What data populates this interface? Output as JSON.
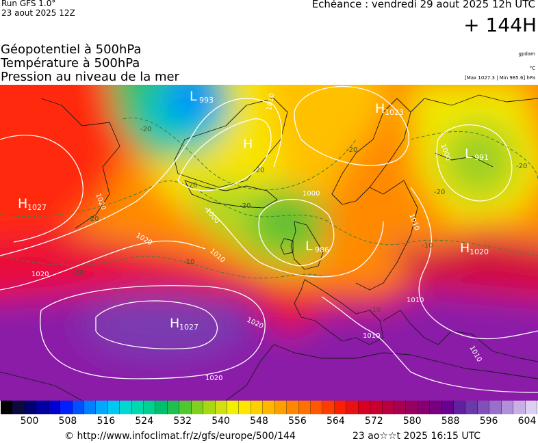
{
  "header": {
    "run": "Run GFS 1.0°",
    "run_date": "23 aout 2025 12Z",
    "valid": "Echéance : vendredi 29 aout 2025 12h UTC",
    "lead": "+ 144H"
  },
  "parameters": [
    "Géopotentiel à 500hPa",
    "Température à 500hPa",
    "Pression au niveau de la mer"
  ],
  "units": {
    "geopotential": "gpdam",
    "temperature": "°C",
    "pressure_range": "[Max 1027.3 | Min 985.6] hPa"
  },
  "pressure_systems": [
    {
      "type": "L",
      "value": "993"
    },
    {
      "type": "H",
      "value": ""
    },
    {
      "type": "H",
      "value": "1023"
    },
    {
      "type": "L",
      "value": "991"
    },
    {
      "type": "H",
      "value": "1027"
    },
    {
      "type": "L",
      "value": "986"
    },
    {
      "type": "H",
      "value": "1020"
    },
    {
      "type": "H",
      "value": "1027"
    }
  ],
  "isobar_labels": [
    "1010",
    "1020",
    "1020",
    "1020",
    "1000",
    "1000",
    "1010",
    "1010",
    "1010",
    "1010",
    "1010",
    "1020",
    "1020",
    "1000"
  ],
  "isotherm_labels": [
    "-10",
    "-10",
    "-20",
    "-20",
    "-20",
    "-20",
    "-20",
    "-20",
    "-10",
    "-10",
    "-20",
    "-20"
  ],
  "colorbar": {
    "colors": [
      "#000000",
      "#0a0a40",
      "#000070",
      "#0000a0",
      "#0000d0",
      "#0020ff",
      "#0050ff",
      "#0080ff",
      "#00a8ff",
      "#00c8f0",
      "#00d8d0",
      "#00d8b0",
      "#00d090",
      "#00c070",
      "#20c050",
      "#50c830",
      "#80d020",
      "#a8d810",
      "#d0e010",
      "#f0f000",
      "#ffe600",
      "#ffd000",
      "#ffb800",
      "#ffa000",
      "#ff8800",
      "#ff7000",
      "#ff5800",
      "#ff3c00",
      "#f82000",
      "#e81010",
      "#d80020",
      "#c80030",
      "#b80040",
      "#a80050",
      "#980060",
      "#880070",
      "#780080",
      "#6a0090",
      "#6020a0",
      "#6a3aaa",
      "#8050b8",
      "#9870c8",
      "#b090d8",
      "#c8b0e4",
      "#dcd0f0"
    ],
    "ticks": [
      "500",
      "508",
      "516",
      "524",
      "532",
      "540",
      "548",
      "556",
      "564",
      "572",
      "580",
      "588",
      "596",
      "604"
    ]
  },
  "footer": {
    "source": "© http://www.infoclimat.fr/z/gfs/europe/500/144",
    "generated": "23 ao☆☆t 2025 16:15 UTC"
  }
}
